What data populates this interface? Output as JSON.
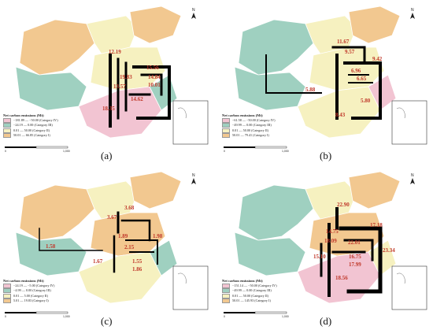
{
  "legend_title": "Net carbon emissions (Mt)",
  "colors": {
    "cat4": "#f2c4d2",
    "cat3": "#9fd0c0",
    "cat2": "#f6f1c0",
    "cat1": "#f2c890",
    "arrow": "#000000",
    "label": "#c0392b"
  },
  "panels": [
    {
      "label": "(a)",
      "legend": [
        "−181.89 — −50.00 (Category IV)",
        "−24.19 — 0.00 (Category III)",
        "0.01 — 50.00 (Category II)",
        "50.01 — 66.85 (Category I)"
      ],
      "flows": [
        "12.19",
        "15.56",
        "14.84",
        "10.01",
        "14.62",
        "13.57",
        "18.35",
        "19.83"
      ]
    },
    {
      "label": "(b)",
      "legend": [
        "−61.58 — −50.00 (Category IV)",
        "−49.99 — 0.00 (Category III)",
        "0.01 — 50.00 (Category II)",
        "50.01 — 79.41 (Category I)"
      ],
      "flows": [
        "11.67",
        "9.57",
        "9.42",
        "6.96",
        "6.65",
        "5.88",
        "5.80",
        "8.43"
      ]
    },
    {
      "label": "(c)",
      "legend": [
        "−24.19 — −5.00 (Category IV)",
        "−4.99 — 0.00 (Category III)",
        "0.01 — 5.00 (Category II)",
        "5.01 — 19.83 (Category I)"
      ],
      "flows": [
        "3.68",
        "3.67",
        "1.98",
        "1.89",
        "2.15",
        "1.58",
        "1.67",
        "1.55",
        "1.86"
      ]
    },
    {
      "label": "(d)",
      "legend": [
        "−151.14 — −50.00 (Category IV)",
        "−49.99 — 0.00 (Category III)",
        "0.01 — 50.00 (Category II)",
        "50.01 — 145.93 (Category I)"
      ],
      "flows": [
        "22.90",
        "17.18",
        "23.34",
        "22.01",
        "16.75",
        "17.99",
        "15.10",
        "18.56",
        "14.75",
        "18.09"
      ]
    }
  ]
}
